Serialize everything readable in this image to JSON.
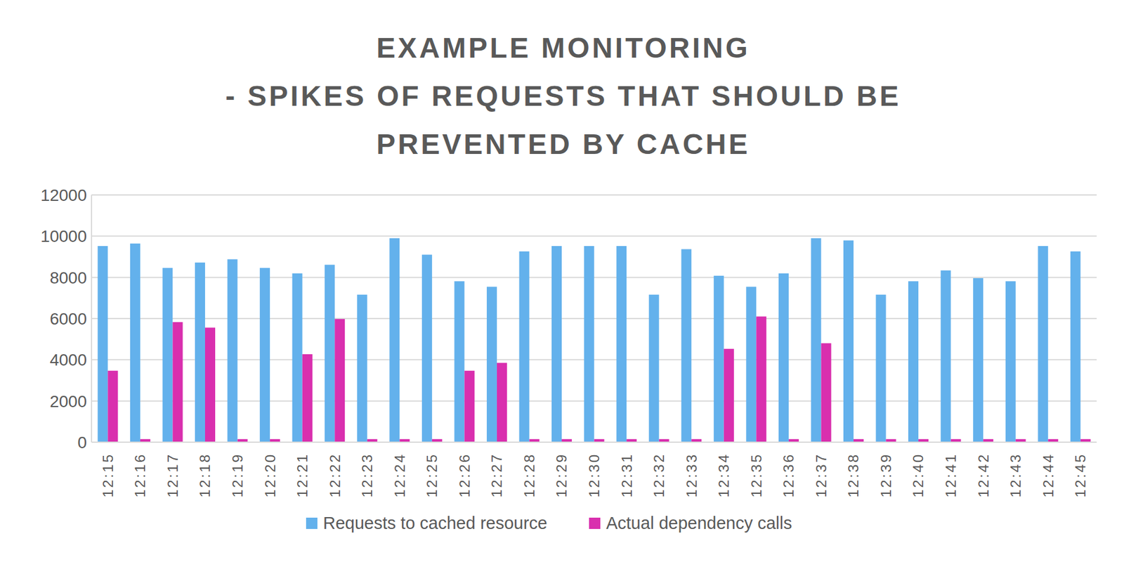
{
  "chart_data": {
    "type": "bar",
    "title": "EXAMPLE MONITORING\n- SPIKES OF REQUESTS THAT SHOULD BE\nPREVENTED BY CACHE",
    "categories": [
      "12:15",
      "12:16",
      "12:17",
      "12:18",
      "12:19",
      "12:20",
      "12:21",
      "12:22",
      "12:23",
      "12:24",
      "12:25",
      "12:26",
      "12:27",
      "12:28",
      "12:29",
      "12:30",
      "12:31",
      "12:32",
      "12:33",
      "12:34",
      "12:35",
      "12:36",
      "12:37",
      "12:38",
      "12:39",
      "12:40",
      "12:41",
      "12:42",
      "12:43",
      "12:44",
      "12:45"
    ],
    "series": [
      {
        "name": "Requests to cached resource",
        "color": "#63b1ec",
        "values": [
          9520,
          9640,
          8460,
          8720,
          8880,
          8460,
          8190,
          8610,
          7160,
          9900,
          9100,
          7810,
          7540,
          9260,
          9520,
          9520,
          9520,
          7160,
          9370,
          8080,
          7540,
          8190,
          9900,
          9790,
          7160,
          7810,
          8340,
          7960,
          7810,
          9520,
          9260
        ]
      },
      {
        "name": "Actual dependency calls",
        "color": "#d92fae",
        "values": [
          3470,
          150,
          5830,
          5560,
          150,
          150,
          4270,
          5980,
          150,
          150,
          150,
          3470,
          3850,
          150,
          150,
          150,
          150,
          150,
          150,
          4530,
          6100,
          150,
          4800,
          150,
          150,
          150,
          150,
          150,
          150,
          150,
          150
        ]
      }
    ],
    "ylim": [
      0,
      12000
    ],
    "yticks": [
      0,
      2000,
      4000,
      6000,
      8000,
      10000,
      12000
    ],
    "grid": true,
    "legend": "bottom"
  }
}
